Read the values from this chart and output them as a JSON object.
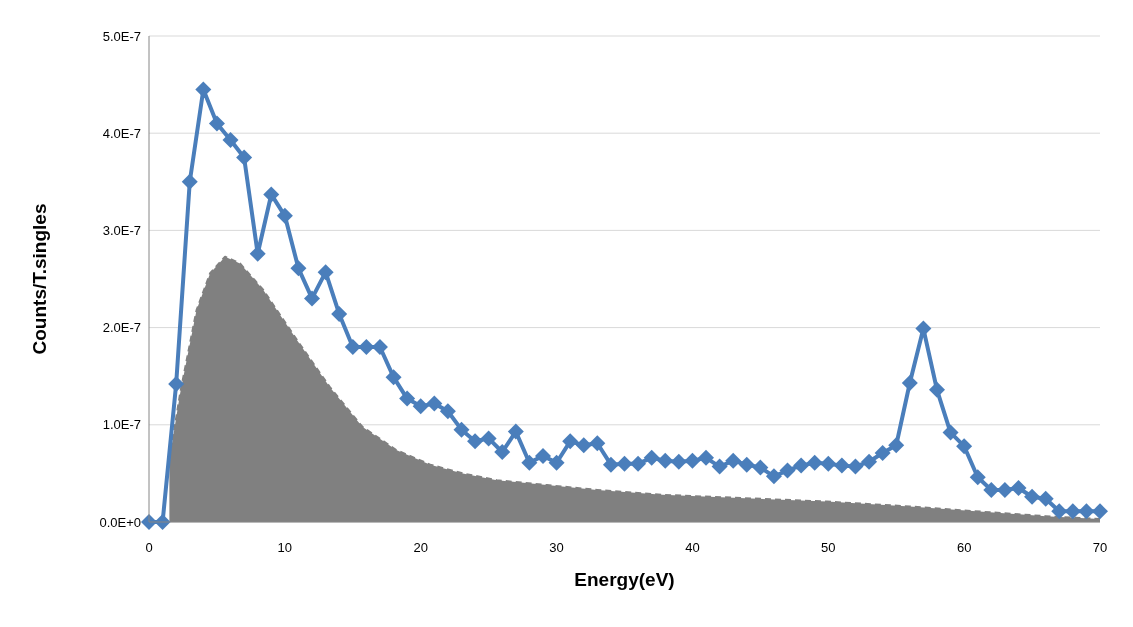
{
  "chart_data": {
    "type": "line",
    "xlabel": "Energy(eV)",
    "ylabel": "Counts/T.singles",
    "xlim": [
      0,
      70
    ],
    "xticks": [
      0,
      10,
      20,
      30,
      40,
      50,
      60,
      70
    ],
    "ylim": [
      0,
      5e-07
    ],
    "yticks": [
      {
        "value": 0,
        "label": "0.0E+0"
      },
      {
        "value": 1e-07,
        "label": "1.0E-7"
      },
      {
        "value": 2e-07,
        "label": "2.0E-7"
      },
      {
        "value": 3e-07,
        "label": "3.0E-7"
      },
      {
        "value": 4e-07,
        "label": "4.0E-7"
      },
      {
        "value": 5e-07,
        "label": "5.0E-7"
      }
    ],
    "grid": "y",
    "series": [
      {
        "type": "area",
        "color": "#808080",
        "line_style": "dashed",
        "marker": "none",
        "x": [
          1.5,
          2.3,
          3.5,
          4.5,
          5.6,
          6.7,
          8.4,
          10.9,
          13.3,
          15.7,
          18.2,
          20.7,
          23.1,
          25.6,
          29.3,
          33,
          37.8,
          43,
          49.9,
          56,
          61.9,
          66,
          70
        ],
        "values": [
          6.4e-08,
          1.33e-07,
          2.18e-07,
          2.56e-07,
          2.73e-07,
          2.66e-07,
          2.39e-07,
          1.87e-07,
          1.39e-07,
          9.8e-08,
          7.4e-08,
          5.9e-08,
          5e-08,
          4.3e-08,
          3.8e-08,
          3.3e-08,
          2.8e-08,
          2.5e-08,
          2.1e-08,
          1.6e-08,
          1e-08,
          6e-09,
          3e-09
        ]
      },
      {
        "type": "line",
        "color": "#4a7ebb",
        "line_style": "solid",
        "marker": "diamond",
        "x": [
          0,
          1,
          2,
          3,
          4,
          5,
          6,
          7,
          8,
          9,
          10,
          11,
          12,
          13,
          14,
          15,
          16,
          17,
          18,
          19,
          20,
          21,
          22,
          23,
          24,
          25,
          26,
          27,
          28,
          29,
          30,
          31,
          32,
          33,
          34,
          35,
          36,
          37,
          38,
          39,
          40,
          41,
          42,
          43,
          44,
          45,
          46,
          47,
          48,
          49,
          50,
          51,
          52,
          53,
          54,
          55,
          56,
          57,
          58,
          59,
          60,
          61,
          62,
          63,
          64,
          65,
          66,
          67,
          68,
          69,
          70
        ],
        "values": [
          0,
          0,
          1.42e-07,
          3.5e-07,
          4.45e-07,
          4.1e-07,
          3.93e-07,
          3.75e-07,
          2.76e-07,
          3.37e-07,
          3.15e-07,
          2.61e-07,
          2.3e-07,
          2.57e-07,
          2.14e-07,
          1.8e-07,
          1.8e-07,
          1.8e-07,
          1.49e-07,
          1.27e-07,
          1.19e-07,
          1.22e-07,
          1.14e-07,
          9.5e-08,
          8.3e-08,
          8.6e-08,
          7.2e-08,
          9.3e-08,
          6.1e-08,
          6.8e-08,
          6.1e-08,
          8.3e-08,
          7.9e-08,
          8.1e-08,
          5.9e-08,
          6e-08,
          6e-08,
          6.6e-08,
          6.3e-08,
          6.2e-08,
          6.3e-08,
          6.6e-08,
          5.7e-08,
          6.3e-08,
          5.9e-08,
          5.6e-08,
          4.7e-08,
          5.3e-08,
          5.8e-08,
          6.1e-08,
          6e-08,
          5.8e-08,
          5.7e-08,
          6.2e-08,
          7.1e-08,
          7.9e-08,
          1.43e-07,
          1.99e-07,
          1.36e-07,
          9.2e-08,
          7.8e-08,
          4.6e-08,
          3.3e-08,
          3.3e-08,
          3.5e-08,
          2.6e-08,
          2.4e-08,
          1.1e-08,
          1.1e-08,
          1.1e-08,
          1.1e-08
        ]
      }
    ]
  }
}
